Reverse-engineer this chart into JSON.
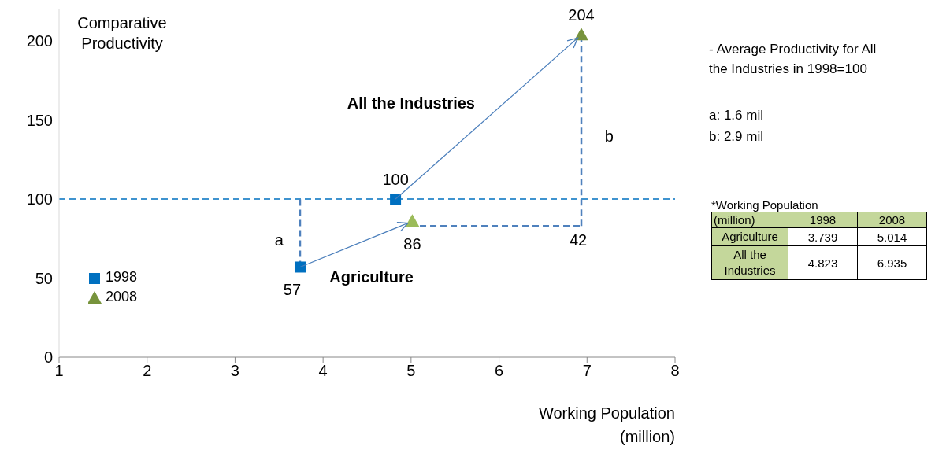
{
  "chart_data": {
    "type": "scatter",
    "xlabel": "Working Population (million)",
    "ylabel": "Comparative Productivity",
    "xlim": [
      1,
      8
    ],
    "xticks": [
      1,
      2,
      3,
      4,
      5,
      6,
      7,
      8
    ],
    "ylim": [
      0,
      220
    ],
    "yticks": [
      0,
      50,
      100,
      150,
      200
    ],
    "grid": false,
    "legend": "bottom left",
    "series": [
      {
        "name": "1998",
        "marker": "square",
        "color": "#0070c0",
        "x": [
          3.739,
          4.823
        ],
        "values": [
          57,
          100
        ],
        "value_labels": [
          "57",
          "100"
        ]
      },
      {
        "name": "2008",
        "marker": "triangle",
        "color": "#77933c",
        "colors": [
          "#9bbb59",
          "#77933c"
        ],
        "x": [
          5.014,
          6.935
        ],
        "values": [
          86,
          204
        ],
        "value_labels": [
          "86",
          "204"
        ]
      },
      {
        "type": "line",
        "marker": "none",
        "line_style": "dashed",
        "color": "#4f81bd",
        "x": [
          3.739,
          3.739
        ],
        "values": [
          57,
          100
        ]
      },
      {
        "type": "line",
        "marker": "none",
        "line_style": "dashed",
        "color": "#4f81bd",
        "x": [
          5.1,
          6.935
        ],
        "values": [
          83,
          83
        ]
      },
      {
        "type": "line",
        "marker": "none",
        "line_style": "dashed",
        "color": "#4f81bd",
        "x": [
          6.935,
          6.935
        ],
        "values": [
          83,
          204
        ]
      }
    ],
    "ref_lines": [
      {
        "axis": "y",
        "value": 100,
        "color": "#0070c0",
        "line_style": "dashed"
      }
    ],
    "annotations": [
      "All the Industries",
      "Agriculture",
      "a",
      "b",
      "42",
      "- Average Productivity for All the Industries in 1998=100",
      "a: 1.6 mil",
      "b: 2.9 mil",
      "*Working Population",
      "(million)",
      "Agriculture",
      "All the Industries",
      "3.739",
      "5.014",
      "4.823",
      "6.935"
    ]
  }
}
